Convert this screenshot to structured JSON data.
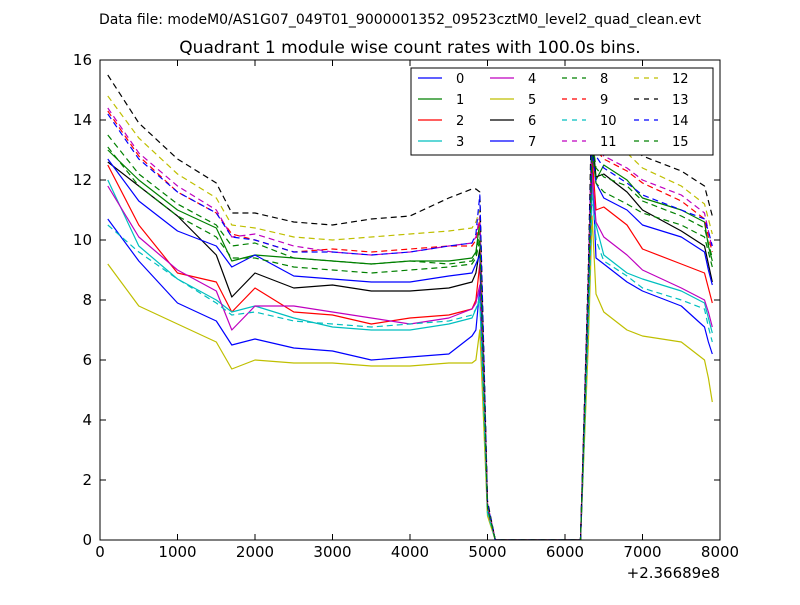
{
  "figure": {
    "suptitle": "Data file: modeM0/AS1G07_049T01_9000001352_09523cztM0_level2_quad_clean.evt",
    "title": "Quadrant 1 module wise count rates with 100.0s bins.",
    "x_offset_label": "+2.36689e8"
  },
  "chart_data": {
    "type": "line",
    "title": "Quadrant 1 module wise count rates with 100.0s bins.",
    "xlabel": "",
    "ylabel": "",
    "xlim": [
      0,
      8000
    ],
    "ylim": [
      0,
      16
    ],
    "x_ticks": [
      0,
      1000,
      2000,
      3000,
      4000,
      5000,
      6000,
      7000,
      8000
    ],
    "x_tick_labels": [
      "0",
      "1000",
      "2000",
      "3000",
      "4000",
      "5000",
      "6000",
      "7000",
      "8000"
    ],
    "y_ticks": [
      0,
      2,
      4,
      6,
      8,
      10,
      12,
      14,
      16
    ],
    "y_tick_labels": [
      "0",
      "2",
      "4",
      "6",
      "8",
      "10",
      "12",
      "14",
      "16"
    ],
    "x_offset": "+2.36689e8",
    "grid": false,
    "legend_position": "top-right",
    "x": [
      100,
      500,
      1000,
      1500,
      1700,
      2000,
      2500,
      3000,
      3500,
      4000,
      4500,
      4800,
      4850,
      4900,
      5000,
      5100,
      6200,
      6300,
      6350,
      6400,
      6500,
      6800,
      7000,
      7500,
      7800,
      7850,
      7900
    ],
    "series": [
      {
        "name": "0",
        "color": "#0000ff",
        "dash": "solid",
        "values": [
          10.7,
          9.3,
          7.9,
          7.3,
          6.5,
          6.7,
          6.4,
          6.3,
          6.0,
          6.1,
          6.2,
          6.8,
          7.0,
          8.4,
          1.0,
          0,
          0,
          7.0,
          12.5,
          9.4,
          9.2,
          8.6,
          8.3,
          7.8,
          7.1,
          6.6,
          6.2
        ]
      },
      {
        "name": "1",
        "color": "#008000",
        "dash": "solid",
        "values": [
          13.0,
          12.0,
          11.0,
          10.4,
          9.3,
          9.5,
          9.4,
          9.3,
          9.2,
          9.3,
          9.3,
          9.4,
          9.6,
          10.6,
          1.1,
          0,
          0,
          8.0,
          13.2,
          12.0,
          12.5,
          12.0,
          11.4,
          11.0,
          10.6,
          9.8,
          9.3
        ]
      },
      {
        "name": "2",
        "color": "#ff0000",
        "dash": "solid",
        "values": [
          12.5,
          10.5,
          8.9,
          8.6,
          7.6,
          8.4,
          7.6,
          7.5,
          7.2,
          7.4,
          7.5,
          7.7,
          8.0,
          9.2,
          1.0,
          0,
          0,
          7.5,
          12.8,
          11.0,
          11.1,
          10.5,
          9.7,
          9.2,
          8.9,
          8.4,
          7.9
        ]
      },
      {
        "name": "3",
        "color": "#00bfbf",
        "dash": "solid",
        "values": [
          12.0,
          9.8,
          8.7,
          8.0,
          7.6,
          7.8,
          7.4,
          7.1,
          7.0,
          7.0,
          7.2,
          7.4,
          7.7,
          8.0,
          0.9,
          0,
          0,
          7.2,
          12.0,
          10.5,
          9.5,
          8.9,
          8.7,
          8.3,
          7.9,
          7.4,
          6.9
        ]
      },
      {
        "name": "4",
        "color": "#bf00bf",
        "dash": "solid",
        "values": [
          11.8,
          10.1,
          9.0,
          8.3,
          7.0,
          7.8,
          7.8,
          7.6,
          7.4,
          7.2,
          7.4,
          7.7,
          7.9,
          8.5,
          1.0,
          0,
          0,
          7.3,
          12.2,
          10.6,
          10.1,
          9.5,
          9.0,
          8.4,
          8.0,
          7.6,
          7.1
        ]
      },
      {
        "name": "5",
        "color": "#bfbf00",
        "dash": "solid",
        "values": [
          9.2,
          7.8,
          7.2,
          6.6,
          5.7,
          6.0,
          5.9,
          5.9,
          5.8,
          5.8,
          5.9,
          5.9,
          6.0,
          7.0,
          0.8,
          0,
          0,
          6.5,
          10.8,
          8.2,
          7.6,
          7.0,
          6.8,
          6.6,
          6.0,
          5.4,
          4.6
        ]
      },
      {
        "name": "6",
        "color": "#000000",
        "dash": "solid",
        "values": [
          12.6,
          11.8,
          10.8,
          9.5,
          8.1,
          8.9,
          8.4,
          8.5,
          8.3,
          8.3,
          8.4,
          8.6,
          8.9,
          9.7,
          1.1,
          0,
          0,
          8.0,
          13.5,
          12.1,
          12.2,
          11.6,
          11.0,
          10.3,
          9.8,
          9.2,
          8.6
        ]
      },
      {
        "name": "7",
        "color": "#0000ff",
        "dash": "solid",
        "values": [
          12.7,
          11.3,
          10.3,
          9.8,
          9.1,
          9.5,
          8.8,
          8.7,
          8.6,
          8.6,
          8.8,
          8.9,
          9.2,
          9.5,
          1.1,
          0,
          0,
          7.8,
          13.0,
          11.9,
          11.4,
          11.0,
          10.5,
          10.1,
          9.6,
          9.0,
          8.5
        ]
      },
      {
        "name": "8",
        "color": "#008000",
        "dash": "dash",
        "values": [
          13.5,
          12.2,
          11.2,
          10.5,
          9.8,
          9.9,
          9.4,
          9.3,
          9.2,
          9.3,
          9.2,
          9.3,
          9.5,
          10.3,
          1.1,
          0,
          0,
          8.2,
          13.4,
          12.4,
          12.1,
          11.8,
          11.3,
          10.8,
          10.4,
          9.9,
          9.4
        ]
      },
      {
        "name": "9",
        "color": "#ff0000",
        "dash": "dash",
        "values": [
          14.3,
          12.8,
          11.6,
          10.9,
          10.2,
          10.0,
          9.6,
          9.7,
          9.6,
          9.7,
          9.8,
          9.8,
          10.0,
          10.7,
          1.2,
          0,
          0,
          8.6,
          14.0,
          13.0,
          12.7,
          12.3,
          11.9,
          11.3,
          10.7,
          10.1,
          9.6
        ]
      },
      {
        "name": "10",
        "color": "#00bfbf",
        "dash": "dash",
        "values": [
          10.5,
          9.6,
          8.7,
          7.9,
          7.5,
          7.6,
          7.3,
          7.2,
          7.1,
          7.2,
          7.3,
          7.5,
          7.7,
          8.1,
          0.9,
          0,
          0,
          7.0,
          11.5,
          10.0,
          9.3,
          8.8,
          8.4,
          8.0,
          7.7,
          7.1,
          6.6
        ]
      },
      {
        "name": "11",
        "color": "#bf00bf",
        "dash": "dash",
        "values": [
          14.4,
          12.9,
          11.8,
          11.0,
          10.1,
          10.2,
          9.8,
          9.6,
          9.5,
          9.6,
          9.8,
          9.9,
          10.1,
          10.8,
          1.2,
          0,
          0,
          8.7,
          14.2,
          13.1,
          12.8,
          12.4,
          12.0,
          11.5,
          10.9,
          10.3,
          9.7
        ]
      },
      {
        "name": "12",
        "color": "#bfbf00",
        "dash": "dash",
        "values": [
          14.8,
          13.4,
          12.2,
          11.4,
          10.5,
          10.4,
          10.1,
          10.0,
          10.1,
          10.2,
          10.3,
          10.4,
          10.6,
          11.0,
          1.2,
          0,
          0,
          8.8,
          14.6,
          13.5,
          13.1,
          12.9,
          12.4,
          11.8,
          11.2,
          10.7,
          10.2
        ]
      },
      {
        "name": "13",
        "color": "#000000",
        "dash": "dash",
        "values": [
          15.5,
          13.9,
          12.7,
          11.9,
          10.9,
          10.9,
          10.6,
          10.5,
          10.7,
          10.8,
          11.4,
          11.7,
          11.7,
          11.6,
          1.3,
          0,
          0,
          9.0,
          15.1,
          14.0,
          13.6,
          13.2,
          12.8,
          12.3,
          11.8,
          11.3,
          10.8
        ]
      },
      {
        "name": "14",
        "color": "#0000ff",
        "dash": "dash",
        "values": [
          14.2,
          12.7,
          11.6,
          10.9,
          10.1,
          10.0,
          9.6,
          9.6,
          9.5,
          9.6,
          9.8,
          9.9,
          10.2,
          11.5,
          1.2,
          0,
          0,
          8.6,
          14.0,
          12.8,
          12.4,
          11.9,
          11.5,
          11.0,
          10.7,
          10.3,
          9.8
        ]
      },
      {
        "name": "15",
        "color": "#008000",
        "dash": "dash",
        "values": [
          13.1,
          11.8,
          10.8,
          10.1,
          9.4,
          9.4,
          9.1,
          9.0,
          8.9,
          9.0,
          9.1,
          9.2,
          9.4,
          10.0,
          1.1,
          0,
          0,
          8.1,
          13.1,
          11.9,
          11.6,
          11.2,
          10.9,
          10.5,
          10.1,
          9.6,
          9.1
        ]
      }
    ]
  }
}
